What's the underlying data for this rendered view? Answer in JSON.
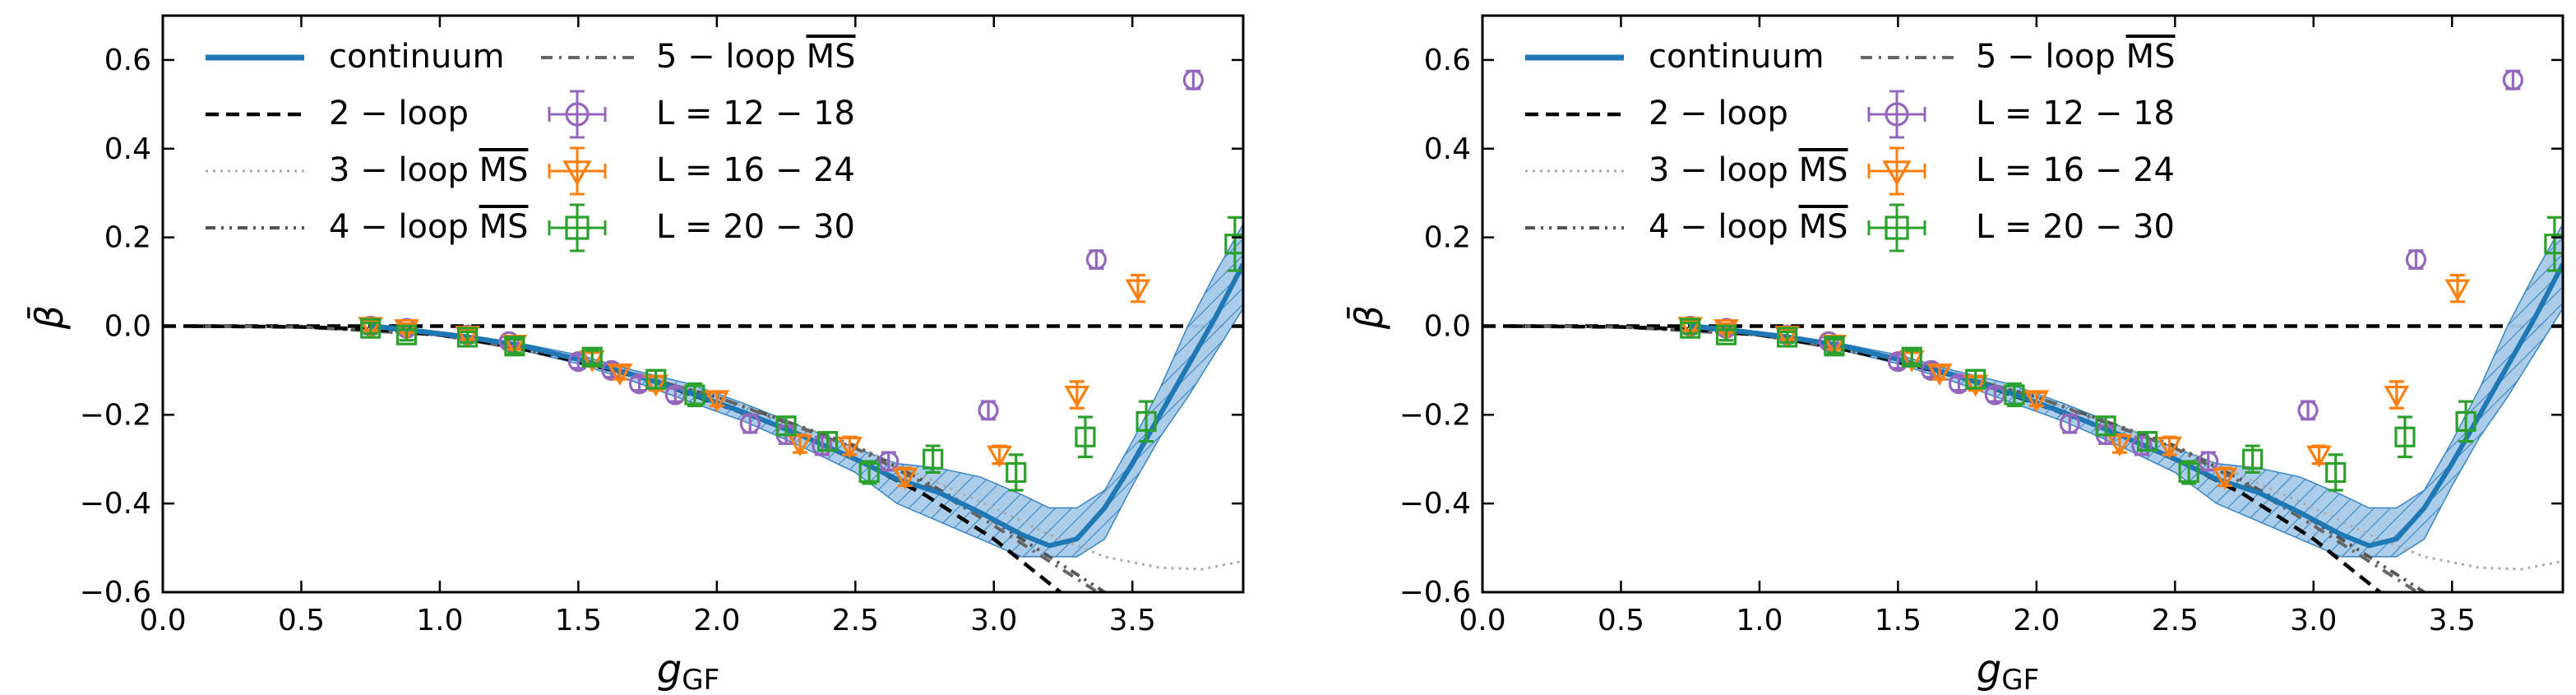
{
  "chart_data": [
    {
      "type": "line",
      "panel": "left",
      "xlabel": "g",
      "xlabel_sub": "GF",
      "ylabel": "β̄",
      "xlim": [
        0.0,
        3.9
      ],
      "ylim": [
        -0.6,
        0.7
      ],
      "xticks": [
        0.0,
        0.5,
        1.0,
        1.5,
        2.0,
        2.5,
        3.0,
        3.5
      ],
      "yticks": [
        -0.6,
        -0.4,
        -0.2,
        0.0,
        0.2,
        0.4,
        0.6
      ],
      "legend": {
        "placement": "top-left",
        "entries": [
          {
            "key": "continuum",
            "label": "continuum",
            "label_over": ""
          },
          {
            "key": "loop2",
            "label": "2 − loop",
            "label_over": ""
          },
          {
            "key": "loop3",
            "label": "3 − loop ",
            "label_over": "MS"
          },
          {
            "key": "loop4",
            "label": "4 − loop ",
            "label_over": "MS"
          },
          {
            "key": "loop5",
            "label": "5 − loop ",
            "label_over": "MS"
          },
          {
            "key": "L12",
            "label": "L = 12 − 18",
            "label_over": ""
          },
          {
            "key": "L16",
            "label": "L = 16 − 24",
            "label_over": ""
          },
          {
            "key": "L20",
            "label": "L = 20 − 30",
            "label_over": ""
          }
        ]
      },
      "series": [
        {
          "name": "continuum",
          "key": "continuum",
          "style": "solid-band",
          "color": "#1f77b4",
          "band_color": "#9ec3e3",
          "x": [
            0.75,
            0.9,
            1.1,
            1.3,
            1.5,
            1.7,
            1.9,
            2.1,
            2.3,
            2.5,
            2.65,
            2.8,
            2.95,
            3.1,
            3.2,
            3.3,
            3.4,
            3.5,
            3.6,
            3.7,
            3.8,
            3.9
          ],
          "y": [
            0.0,
            -0.01,
            -0.025,
            -0.045,
            -0.075,
            -0.11,
            -0.15,
            -0.195,
            -0.245,
            -0.3,
            -0.345,
            -0.375,
            -0.42,
            -0.47,
            -0.495,
            -0.48,
            -0.41,
            -0.31,
            -0.2,
            -0.09,
            0.02,
            0.14
          ],
          "y_low": [
            -0.005,
            -0.015,
            -0.03,
            -0.055,
            -0.085,
            -0.125,
            -0.17,
            -0.215,
            -0.27,
            -0.33,
            -0.4,
            -0.44,
            -0.48,
            -0.52,
            -0.52,
            -0.52,
            -0.48,
            -0.36,
            -0.25,
            -0.16,
            -0.06,
            0.04
          ],
          "y_high": [
            0.005,
            -0.005,
            -0.02,
            -0.04,
            -0.065,
            -0.1,
            -0.13,
            -0.175,
            -0.225,
            -0.275,
            -0.31,
            -0.32,
            -0.34,
            -0.38,
            -0.41,
            -0.41,
            -0.37,
            -0.26,
            -0.14,
            0.0,
            0.12,
            0.23
          ]
        },
        {
          "name": "2 − loop",
          "key": "loop2",
          "style": "dashed",
          "color": "#000000",
          "x": [
            0.1,
            0.5,
            0.75,
            1.0,
            1.25,
            1.5,
            1.75,
            2.0,
            2.25,
            2.5,
            2.75,
            3.0,
            3.2,
            3.3
          ],
          "y": [
            0.0,
            -0.002,
            -0.007,
            -0.02,
            -0.045,
            -0.08,
            -0.12,
            -0.175,
            -0.23,
            -0.3,
            -0.38,
            -0.48,
            -0.58,
            -0.63
          ]
        },
        {
          "name": "3 − loop MS",
          "key": "loop3",
          "style": "dotted",
          "color": "#aaaaaa",
          "x": [
            0.1,
            0.5,
            1.0,
            1.5,
            2.0,
            2.5,
            2.75,
            3.0,
            3.2,
            3.4,
            3.6,
            3.75,
            3.9
          ],
          "y": [
            0.0,
            -0.002,
            -0.02,
            -0.075,
            -0.16,
            -0.27,
            -0.34,
            -0.41,
            -0.47,
            -0.52,
            -0.545,
            -0.548,
            -0.53
          ]
        },
        {
          "name": "4 − loop MS",
          "key": "loop4",
          "style": "dashdotdot",
          "color": "#555555",
          "x": [
            0.1,
            0.5,
            1.0,
            1.5,
            2.0,
            2.5,
            2.75,
            3.0,
            3.2,
            3.35,
            3.45
          ],
          "y": [
            0.0,
            -0.002,
            -0.02,
            -0.075,
            -0.16,
            -0.27,
            -0.35,
            -0.44,
            -0.52,
            -0.58,
            -0.62
          ]
        },
        {
          "name": "5 − loop MS",
          "key": "loop5",
          "style": "dashdot",
          "color": "#666666",
          "x": [
            0.1,
            0.5,
            1.0,
            1.5,
            2.0,
            2.5,
            2.75,
            3.0,
            3.2,
            3.35,
            3.45
          ],
          "y": [
            0.0,
            -0.002,
            -0.02,
            -0.075,
            -0.16,
            -0.275,
            -0.355,
            -0.45,
            -0.53,
            -0.59,
            -0.63
          ]
        },
        {
          "name": "L = 12 − 18",
          "key": "L12",
          "style": "marker-circle",
          "color": "#9467bd",
          "x": [
            0.75,
            0.88,
            1.1,
            1.25,
            1.5,
            1.62,
            1.72,
            1.85,
            2.12,
            2.25,
            2.38,
            2.62,
            2.98,
            3.37,
            3.72
          ],
          "y": [
            0.0,
            -0.005,
            -0.02,
            -0.035,
            -0.08,
            -0.1,
            -0.13,
            -0.155,
            -0.22,
            -0.245,
            -0.27,
            -0.305,
            -0.19,
            0.15,
            0.555
          ],
          "yerr": [
            0.01,
            0.01,
            0.01,
            0.01,
            0.015,
            0.015,
            0.015,
            0.015,
            0.02,
            0.02,
            0.02,
            0.02,
            0.02,
            0.02,
            0.02
          ]
        },
        {
          "name": "L = 16 − 24",
          "key": "L16",
          "style": "marker-triangle",
          "color": "#ff7f0e",
          "x": [
            0.75,
            0.88,
            1.1,
            1.27,
            1.55,
            1.65,
            1.78,
            2.0,
            2.3,
            2.48,
            2.68,
            3.02,
            3.3,
            3.52
          ],
          "y": [
            0.0,
            -0.005,
            -0.02,
            -0.04,
            -0.075,
            -0.105,
            -0.13,
            -0.165,
            -0.265,
            -0.27,
            -0.34,
            -0.29,
            -0.155,
            0.085
          ],
          "yerr": [
            0.01,
            0.01,
            0.01,
            0.012,
            0.015,
            0.015,
            0.015,
            0.015,
            0.02,
            0.02,
            0.02,
            0.02,
            0.03,
            0.03
          ]
        },
        {
          "name": "L = 20 − 30",
          "key": "L20",
          "style": "marker-square",
          "color": "#2ca02c",
          "x": [
            0.75,
            0.88,
            1.1,
            1.27,
            1.55,
            1.78,
            1.92,
            2.25,
            2.4,
            2.55,
            2.78,
            3.08,
            3.33,
            3.55,
            3.87
          ],
          "y": [
            -0.005,
            -0.02,
            -0.025,
            -0.045,
            -0.07,
            -0.12,
            -0.155,
            -0.225,
            -0.26,
            -0.33,
            -0.3,
            -0.33,
            -0.25,
            -0.215,
            0.185
          ],
          "yerr": [
            0.012,
            0.012,
            0.012,
            0.015,
            0.015,
            0.02,
            0.025,
            0.02,
            0.02,
            0.025,
            0.03,
            0.04,
            0.045,
            0.045,
            0.06
          ]
        }
      ]
    },
    {
      "type": "line",
      "panel": "right",
      "xlabel": "g",
      "xlabel_sub": "GF",
      "ylabel": "β̄",
      "xlim": [
        0.0,
        3.9
      ],
      "ylim": [
        -0.6,
        0.7
      ],
      "xticks": [
        0.0,
        0.5,
        1.0,
        1.5,
        2.0,
        2.5,
        3.0,
        3.5
      ],
      "yticks": [
        -0.6,
        -0.4,
        -0.2,
        0.0,
        0.2,
        0.4,
        0.6
      ],
      "legend": {
        "placement": "top-left",
        "entries": [
          {
            "key": "continuum",
            "label": "continuum",
            "label_over": ""
          },
          {
            "key": "loop2",
            "label": "2 − loop",
            "label_over": ""
          },
          {
            "key": "loop3",
            "label": "3 − loop ",
            "label_over": "MS"
          },
          {
            "key": "loop4",
            "label": "4 − loop ",
            "label_over": "MS"
          },
          {
            "key": "loop5",
            "label": "5 − loop ",
            "label_over": "MS"
          },
          {
            "key": "L12",
            "label": "L = 12 − 18",
            "label_over": ""
          },
          {
            "key": "L16",
            "label": "L = 16 − 24",
            "label_over": ""
          },
          {
            "key": "L20",
            "label": "L = 20 − 30",
            "label_over": ""
          }
        ]
      },
      "series": [
        {
          "name": "continuum",
          "key": "continuum",
          "style": "solid-band",
          "color": "#1f77b4",
          "band_color": "#9ec3e3",
          "x": [
            0.75,
            0.9,
            1.1,
            1.3,
            1.5,
            1.7,
            1.9,
            2.1,
            2.3,
            2.5,
            2.65,
            2.8,
            2.95,
            3.1,
            3.2,
            3.3,
            3.4,
            3.5,
            3.6,
            3.7,
            3.8,
            3.9
          ],
          "y": [
            0.0,
            -0.01,
            -0.025,
            -0.045,
            -0.075,
            -0.11,
            -0.15,
            -0.195,
            -0.245,
            -0.3,
            -0.345,
            -0.375,
            -0.42,
            -0.47,
            -0.495,
            -0.48,
            -0.41,
            -0.31,
            -0.2,
            -0.09,
            0.02,
            0.14
          ],
          "y_low": [
            -0.005,
            -0.015,
            -0.03,
            -0.055,
            -0.085,
            -0.125,
            -0.17,
            -0.215,
            -0.27,
            -0.33,
            -0.4,
            -0.44,
            -0.48,
            -0.52,
            -0.52,
            -0.52,
            -0.48,
            -0.36,
            -0.25,
            -0.16,
            -0.06,
            0.04
          ],
          "y_high": [
            0.005,
            -0.005,
            -0.02,
            -0.04,
            -0.065,
            -0.1,
            -0.13,
            -0.175,
            -0.225,
            -0.275,
            -0.31,
            -0.32,
            -0.34,
            -0.38,
            -0.41,
            -0.41,
            -0.37,
            -0.26,
            -0.14,
            0.0,
            0.12,
            0.23
          ]
        },
        {
          "name": "2 − loop",
          "key": "loop2",
          "style": "dashed",
          "color": "#000000",
          "x": [
            0.1,
            0.5,
            0.75,
            1.0,
            1.25,
            1.5,
            1.75,
            2.0,
            2.25,
            2.5,
            2.75,
            3.0,
            3.2,
            3.3
          ],
          "y": [
            0.0,
            -0.002,
            -0.007,
            -0.02,
            -0.045,
            -0.08,
            -0.12,
            -0.175,
            -0.23,
            -0.3,
            -0.38,
            -0.48,
            -0.58,
            -0.63
          ]
        },
        {
          "name": "3 − loop MS",
          "key": "loop3",
          "style": "dotted",
          "color": "#aaaaaa",
          "x": [
            0.1,
            0.5,
            1.0,
            1.5,
            2.0,
            2.5,
            2.75,
            3.0,
            3.2,
            3.4,
            3.6,
            3.75,
            3.9
          ],
          "y": [
            0.0,
            -0.002,
            -0.02,
            -0.075,
            -0.16,
            -0.27,
            -0.34,
            -0.41,
            -0.47,
            -0.52,
            -0.545,
            -0.548,
            -0.53
          ]
        },
        {
          "name": "4 − loop MS",
          "key": "loop4",
          "style": "dashdotdot",
          "color": "#555555",
          "x": [
            0.1,
            0.5,
            1.0,
            1.5,
            2.0,
            2.5,
            2.75,
            3.0,
            3.2,
            3.35,
            3.45
          ],
          "y": [
            0.0,
            -0.002,
            -0.02,
            -0.075,
            -0.16,
            -0.27,
            -0.35,
            -0.44,
            -0.52,
            -0.58,
            -0.62
          ]
        },
        {
          "name": "5 − loop MS",
          "key": "loop5",
          "style": "dashdot",
          "color": "#666666",
          "x": [
            0.1,
            0.5,
            1.0,
            1.5,
            2.0,
            2.5,
            2.75,
            3.0,
            3.2,
            3.35,
            3.45
          ],
          "y": [
            0.0,
            -0.002,
            -0.02,
            -0.075,
            -0.16,
            -0.275,
            -0.355,
            -0.45,
            -0.53,
            -0.59,
            -0.63
          ]
        },
        {
          "name": "L = 12 − 18",
          "key": "L12",
          "style": "marker-circle",
          "color": "#9467bd",
          "x": [
            0.75,
            0.88,
            1.1,
            1.25,
            1.5,
            1.62,
            1.72,
            1.85,
            2.12,
            2.25,
            2.38,
            2.62,
            2.98,
            3.37,
            3.72
          ],
          "y": [
            0.0,
            -0.005,
            -0.02,
            -0.035,
            -0.08,
            -0.1,
            -0.13,
            -0.155,
            -0.22,
            -0.245,
            -0.27,
            -0.305,
            -0.19,
            0.15,
            0.555
          ],
          "yerr": [
            0.01,
            0.01,
            0.01,
            0.01,
            0.015,
            0.015,
            0.015,
            0.015,
            0.02,
            0.02,
            0.02,
            0.02,
            0.02,
            0.02,
            0.02
          ]
        },
        {
          "name": "L = 16 − 24",
          "key": "L16",
          "style": "marker-triangle",
          "color": "#ff7f0e",
          "x": [
            0.75,
            0.88,
            1.1,
            1.27,
            1.55,
            1.65,
            1.78,
            2.0,
            2.3,
            2.48,
            2.68,
            3.02,
            3.3,
            3.52
          ],
          "y": [
            0.0,
            -0.005,
            -0.02,
            -0.04,
            -0.075,
            -0.105,
            -0.13,
            -0.165,
            -0.265,
            -0.27,
            -0.34,
            -0.29,
            -0.155,
            0.085
          ],
          "yerr": [
            0.01,
            0.01,
            0.01,
            0.012,
            0.015,
            0.015,
            0.015,
            0.015,
            0.02,
            0.02,
            0.02,
            0.02,
            0.03,
            0.03
          ]
        },
        {
          "name": "L = 20 − 30",
          "key": "L20",
          "style": "marker-square",
          "color": "#2ca02c",
          "x": [
            0.75,
            0.88,
            1.1,
            1.27,
            1.55,
            1.78,
            1.92,
            2.25,
            2.4,
            2.55,
            2.78,
            3.08,
            3.33,
            3.55,
            3.87
          ],
          "y": [
            -0.005,
            -0.02,
            -0.025,
            -0.045,
            -0.07,
            -0.12,
            -0.155,
            -0.225,
            -0.26,
            -0.33,
            -0.3,
            -0.33,
            -0.25,
            -0.215,
            0.185
          ],
          "yerr": [
            0.012,
            0.012,
            0.012,
            0.015,
            0.015,
            0.02,
            0.025,
            0.02,
            0.02,
            0.025,
            0.03,
            0.04,
            0.045,
            0.045,
            0.06
          ]
        }
      ]
    }
  ]
}
